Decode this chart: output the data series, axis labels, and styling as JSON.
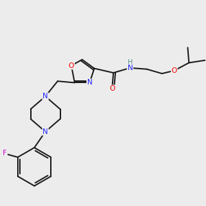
{
  "background_color": "#ececec",
  "bond_color": "#1a1a1a",
  "atom_colors": {
    "N": "#2020ff",
    "O": "#ff0000",
    "F": "#cc00cc",
    "H": "#5a9090",
    "C": "#1a1a1a"
  },
  "figsize": [
    3.0,
    3.0
  ],
  "dpi": 100
}
